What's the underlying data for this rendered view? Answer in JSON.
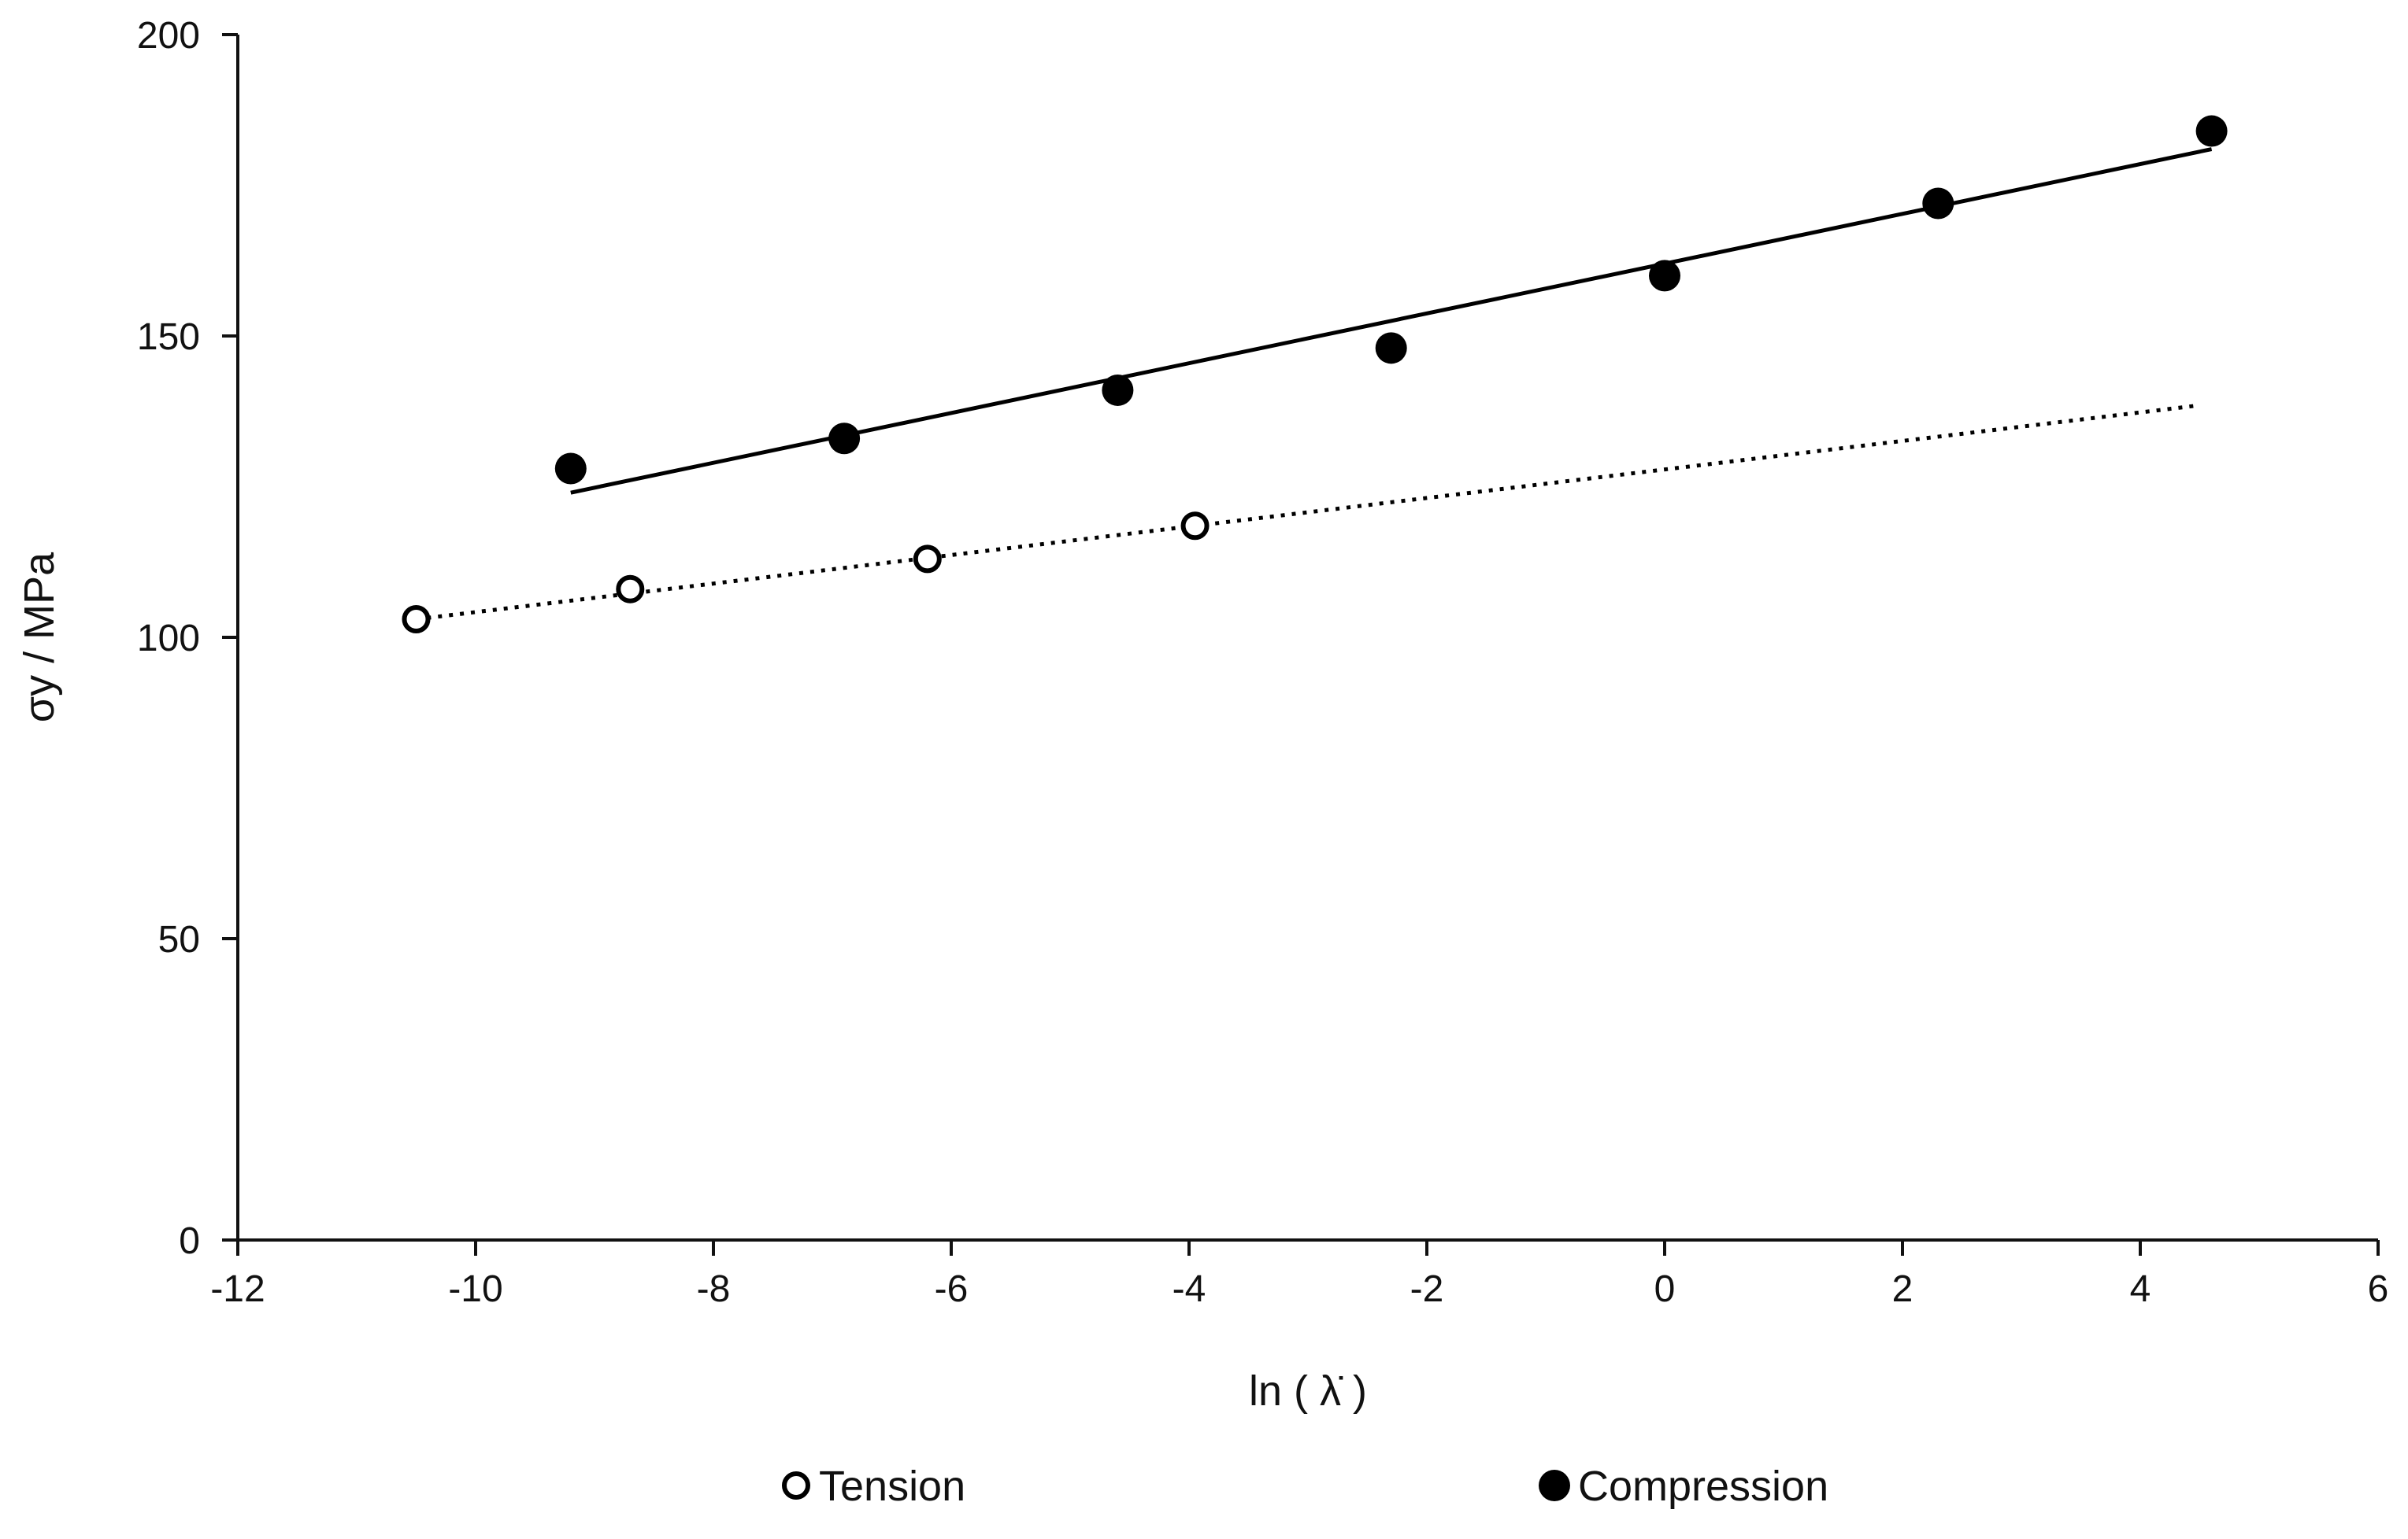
{
  "chart_data": {
    "type": "scatter",
    "title": "",
    "xlabel": "ln ( λ̇ )",
    "ylabel": "σy / MPa",
    "xlim": [
      -12,
      6
    ],
    "ylim": [
      0,
      200
    ],
    "xticks": [
      -12,
      -10,
      -8,
      -6,
      -4,
      -2,
      0,
      2,
      4,
      6
    ],
    "yticks": [
      0,
      50,
      100,
      150,
      200
    ],
    "grid": false,
    "legend_position": "bottom",
    "series": [
      {
        "name": "Tension",
        "marker": "open-circle",
        "x": [
          -10.5,
          -8.7,
          -6.2,
          -3.95
        ],
        "y": [
          103,
          108,
          113,
          118.5
        ],
        "trendline": {
          "style": "dotted",
          "x": [
            -10.5,
            4.5
          ],
          "y": [
            103,
            138.5
          ]
        }
      },
      {
        "name": "Compression",
        "marker": "filled-circle",
        "x": [
          -9.2,
          -6.9,
          -4.6,
          -2.3,
          0,
          2.3,
          4.6
        ],
        "y": [
          128,
          133,
          141,
          148,
          160,
          172,
          184
        ],
        "trendline": {
          "style": "solid",
          "x": [
            -9.2,
            4.6
          ],
          "y": [
            124,
            181
          ]
        }
      }
    ]
  },
  "colors": {
    "axis": "#111111",
    "marker": "#000000",
    "background": "#ffffff"
  }
}
